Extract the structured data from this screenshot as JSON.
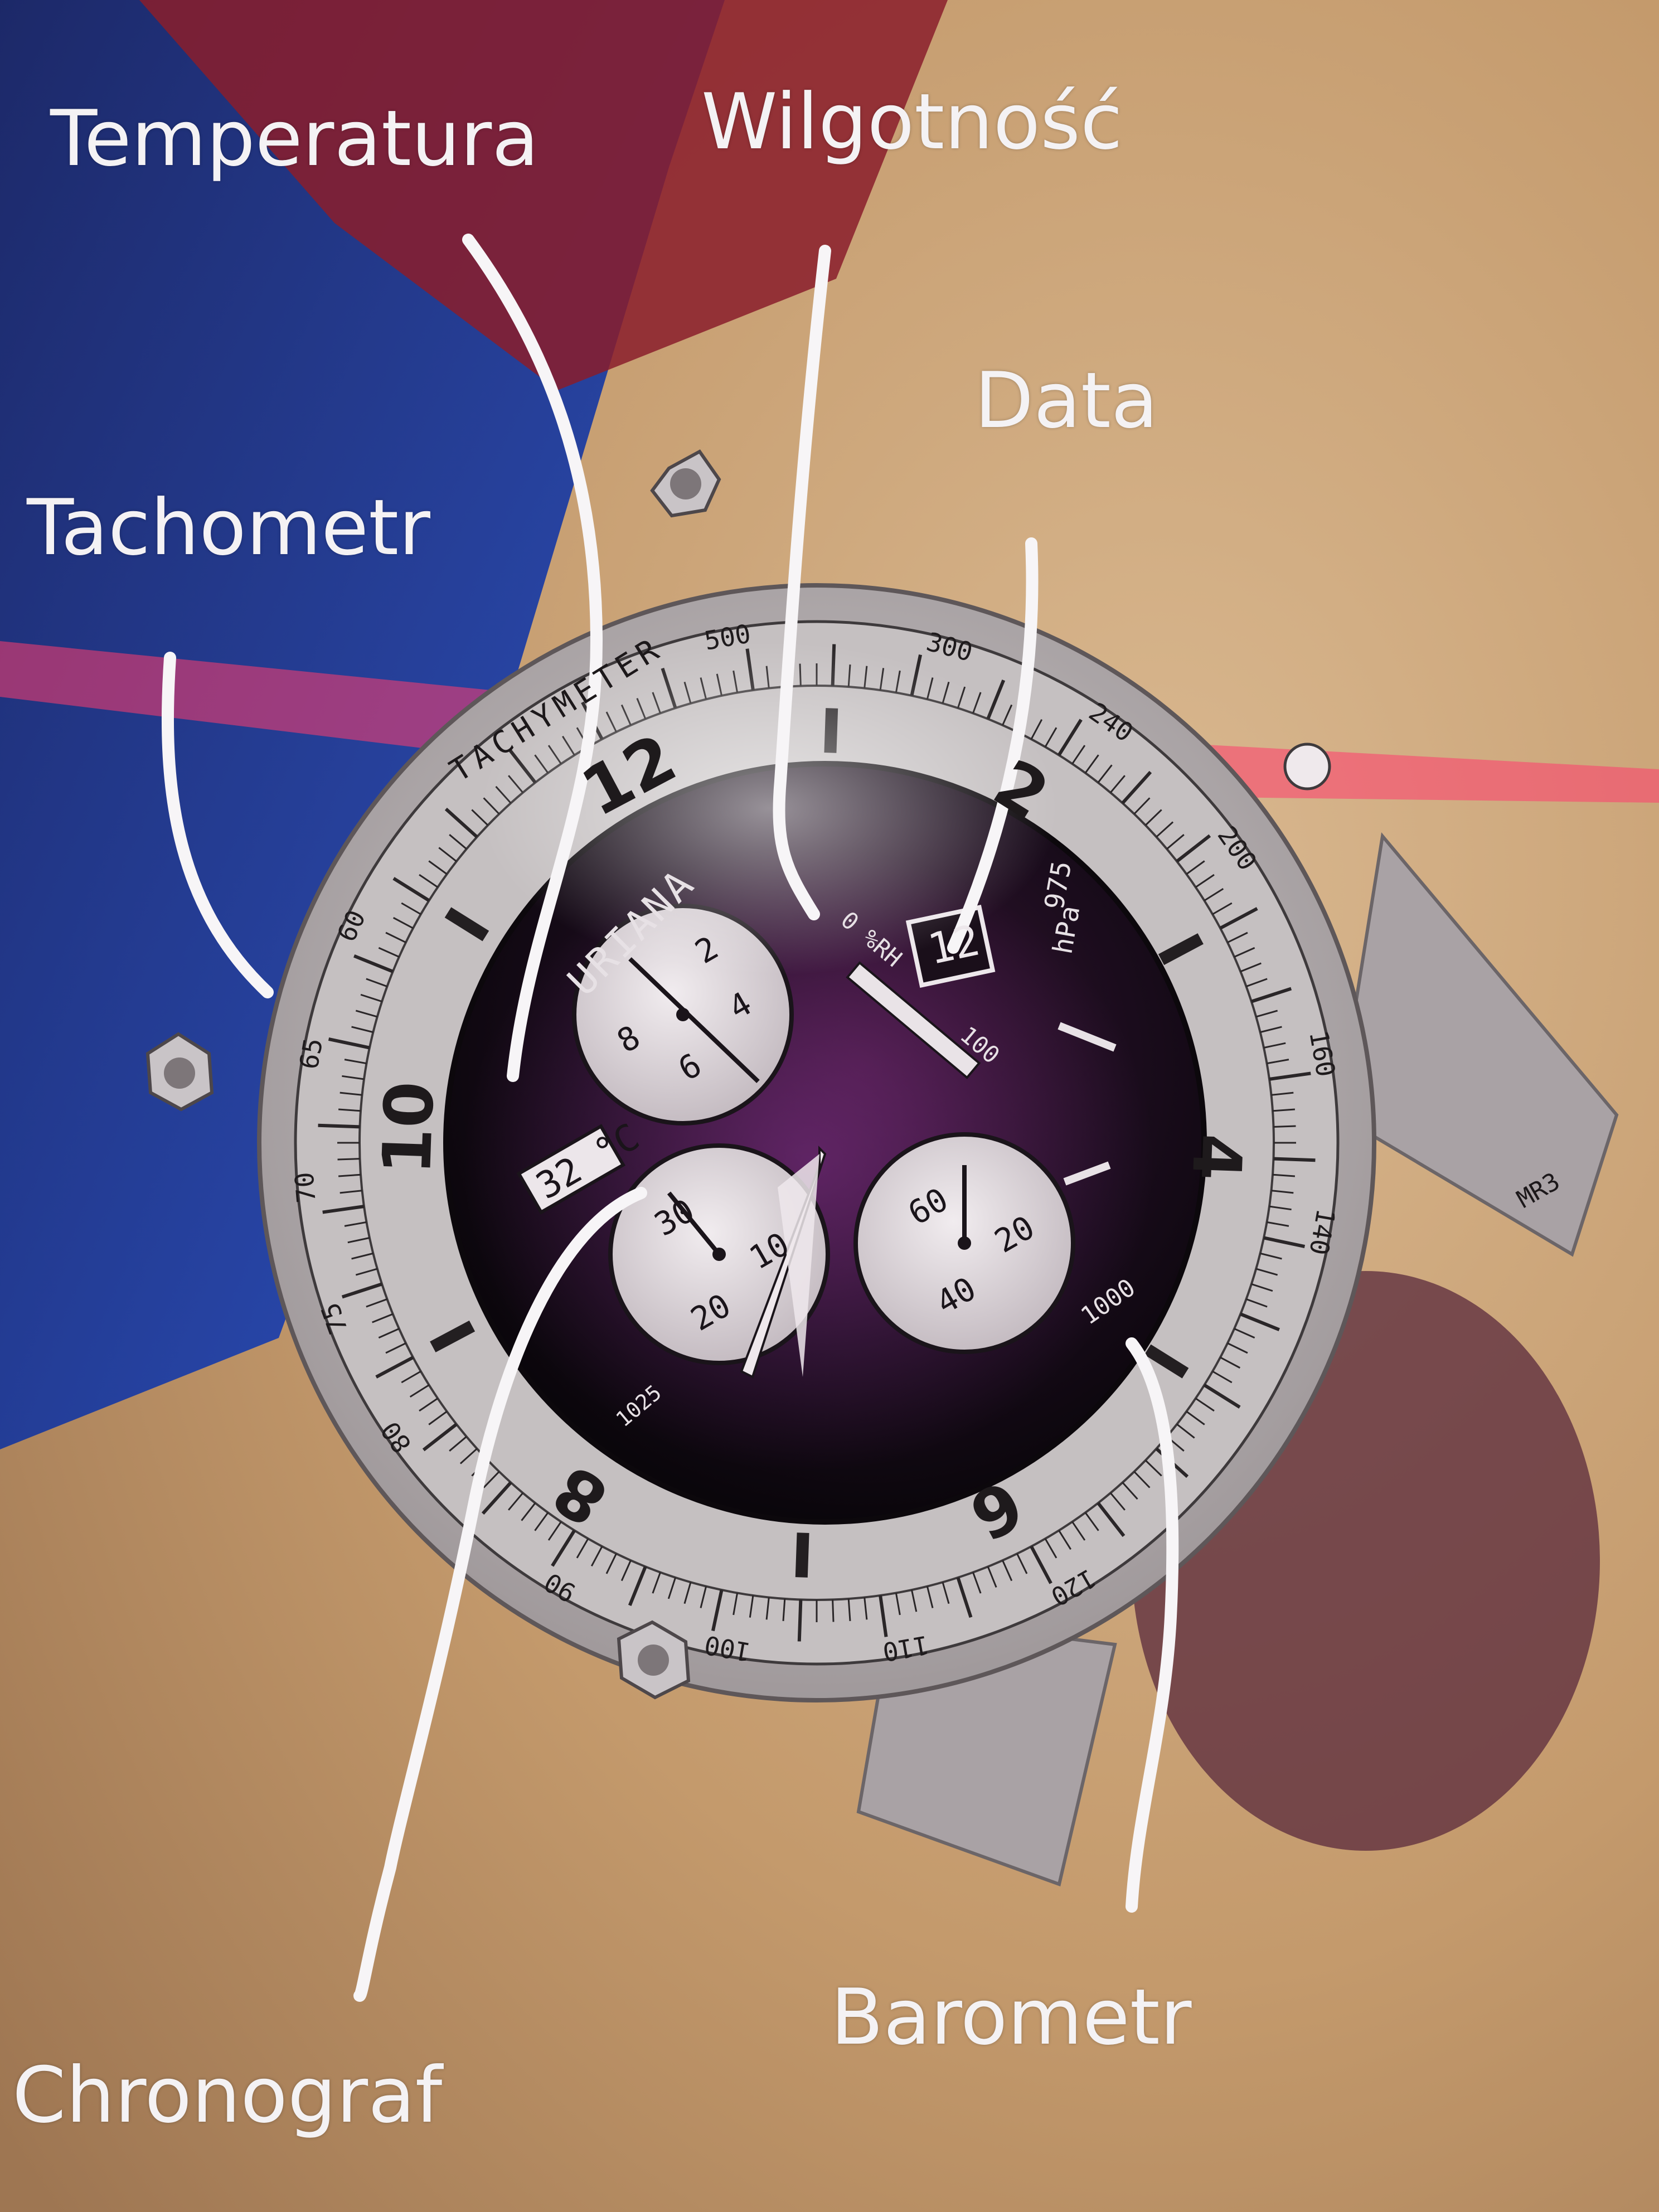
{
  "labels": {
    "temperature": "Temperatura",
    "humidity": "Wilgotność",
    "date": "Data",
    "tachometer": "Tachometr",
    "chronograph": "Chronograf",
    "barometer": "Barometr"
  },
  "dial": {
    "brand": "URIANA",
    "bezel_title": "TACHYMETER",
    "hour_numerals": [
      "12",
      "2",
      "4",
      "6",
      "8",
      "10"
    ],
    "tachymeter_scale": [
      "60",
      "65",
      "70",
      "75",
      "80",
      "90",
      "100",
      "110",
      "120",
      "140",
      "160",
      "200",
      "240",
      "300",
      "500"
    ],
    "temperature_window": "32 °C",
    "date_window": "12",
    "humidity_scale_start": "0 %RH",
    "humidity_scale_end": "100",
    "pressure_top": "975",
    "pressure_unit": "hPa",
    "pressure_bottom": "1000",
    "pressure_low_label": "1025",
    "subdial_top": [
      "2",
      "4",
      "6",
      "8"
    ],
    "subdial_left": [
      "30",
      "20",
      "10"
    ],
    "subdial_right": [
      "60",
      "20",
      "40"
    ],
    "case_mark": "MR3"
  },
  "colors": {
    "label_text": "#f4f2f4",
    "annotation_line": "#f7f5f7",
    "dial_black": "#120a14",
    "bezel_silver": "#b9b4b5",
    "table_wood": "#c8a37a"
  }
}
